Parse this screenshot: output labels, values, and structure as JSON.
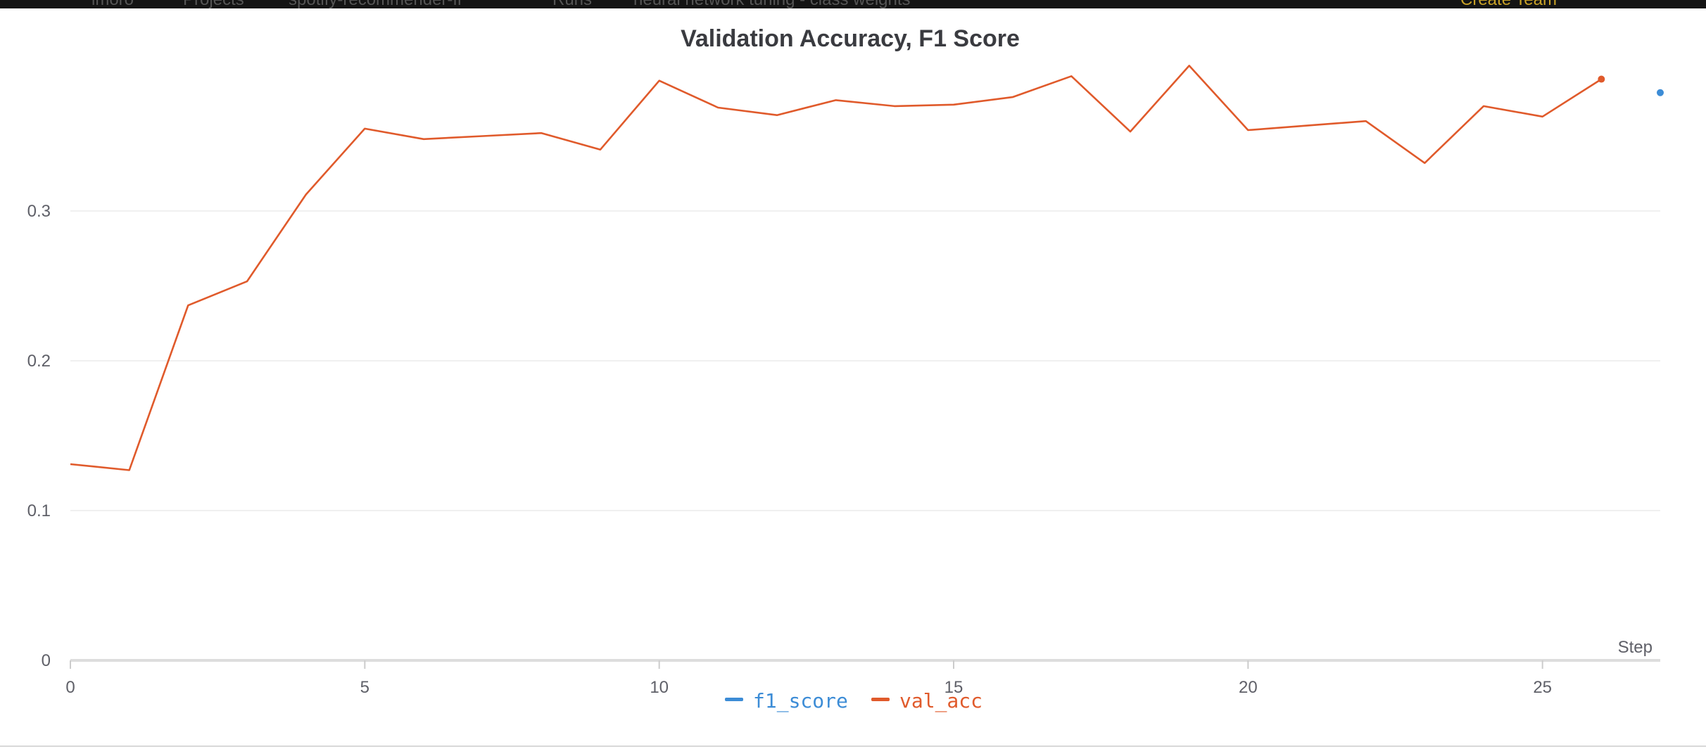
{
  "header": {
    "breadcrumb": [
      "lmoro",
      "Projects",
      "spotify-recommender-ff",
      "Runs",
      "neural network tuning - class weights"
    ],
    "create_team_label": "Create Team"
  },
  "chart_data": {
    "type": "line",
    "title": "Validation Accuracy, F1 Score",
    "xlabel": "Step",
    "ylabel": "",
    "xlim": [
      0,
      27
    ],
    "ylim": [
      0,
      0.39
    ],
    "x_ticks": [
      0,
      5,
      10,
      15,
      20,
      25
    ],
    "y_ticks": [
      0,
      0.1,
      0.2,
      0.3
    ],
    "y_tick_labels": [
      "0",
      "0.1",
      "0.2",
      "0.3"
    ],
    "grid": true,
    "legend_position": "bottom-center",
    "series": [
      {
        "name": "f1_score",
        "color": "#3c8cd6",
        "x": [
          27
        ],
        "y": [
          0.379
        ]
      },
      {
        "name": "val_acc",
        "color": "#e05a2b",
        "x": [
          0,
          1,
          2,
          3,
          4,
          5,
          6,
          7,
          8,
          9,
          10,
          11,
          12,
          13,
          14,
          15,
          16,
          17,
          18,
          19,
          20,
          21,
          22,
          23,
          24,
          25,
          26
        ],
        "y": [
          0.131,
          0.127,
          0.237,
          0.253,
          0.311,
          0.355,
          0.348,
          0.35,
          0.352,
          0.341,
          0.387,
          0.369,
          0.364,
          0.374,
          0.37,
          0.371,
          0.376,
          0.39,
          0.353,
          0.397,
          0.354,
          0.357,
          0.36,
          0.332,
          0.37,
          0.363,
          0.388
        ]
      }
    ]
  }
}
